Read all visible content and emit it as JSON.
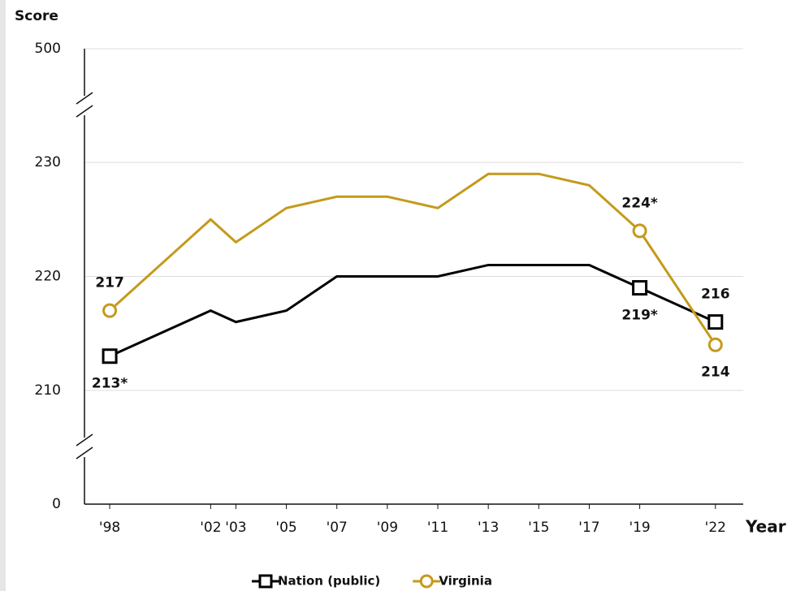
{
  "chart_data": {
    "type": "line",
    "y_label": "Score",
    "x_label": "Year",
    "x": [
      1998,
      2002,
      2003,
      2005,
      2007,
      2009,
      2011,
      2013,
      2015,
      2017,
      2019,
      2022
    ],
    "xlim": [
      1997,
      2023.1
    ],
    "xticks": [
      {
        "value": 1998,
        "label": "'98"
      },
      {
        "value": 2002,
        "label": "'02"
      },
      {
        "value": 2003,
        "label": "'03"
      },
      {
        "value": 2005,
        "label": "'05"
      },
      {
        "value": 2007,
        "label": "'07"
      },
      {
        "value": 2009,
        "label": "'09"
      },
      {
        "value": 2011,
        "label": "'11"
      },
      {
        "value": 2013,
        "label": "'13"
      },
      {
        "value": 2015,
        "label": "'15"
      },
      {
        "value": 2017,
        "label": "'17"
      },
      {
        "value": 2019,
        "label": "'19"
      },
      {
        "value": 2022,
        "label": "'22"
      }
    ],
    "ylim": [
      205,
      235
    ],
    "yticks": [
      210,
      220,
      230
    ],
    "axis_break_ticks": [
      0,
      500
    ],
    "grid": true,
    "series": [
      {
        "name": "Nation (public)",
        "color": "#000000",
        "marker": "square",
        "values": [
          213,
          217,
          216,
          217,
          220,
          220,
          220,
          221,
          221,
          221,
          219,
          216
        ],
        "value_labels": [
          "213*",
          null,
          null,
          null,
          null,
          null,
          null,
          null,
          null,
          null,
          "219*",
          "216"
        ]
      },
      {
        "name": "Virginia",
        "color": "#c49a1c",
        "marker": "circle",
        "values": [
          217,
          225,
          223,
          226,
          227,
          227,
          226,
          229,
          229,
          228,
          224,
          214
        ],
        "value_labels": [
          "217",
          null,
          null,
          null,
          null,
          null,
          null,
          null,
          null,
          null,
          "224*",
          "214"
        ]
      }
    ]
  }
}
